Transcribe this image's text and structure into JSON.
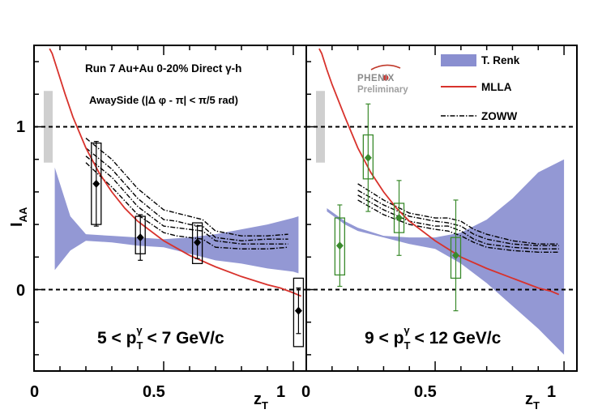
{
  "chart_data": [
    {
      "type": "scatter",
      "panel": "left",
      "title": "Run 7 Au+Au 0-20% Direct γ-h",
      "subtitle": "AwaySide (|Δ φ - π| < π/5 rad)",
      "kinematics": {
        "prefix": "5 < p",
        "sub": "T",
        "sup": "γ",
        "suffix": " < 7 GeV/c"
      },
      "ylabel": {
        "main": "I",
        "sub": "AA"
      },
      "xlabel": {
        "main": "z",
        "sub": "T"
      },
      "xlim": [
        0,
        1.05
      ],
      "ylim": [
        -0.5,
        1.5
      ],
      "x_ticks": [
        "0",
        "0.5",
        "1"
      ],
      "y_ticks": [
        "0",
        "1"
      ],
      "reference_lines": [
        0,
        1
      ],
      "global_uncertainty": {
        "low": 0.78,
        "high": 1.22
      },
      "data": {
        "name": "PHENIX",
        "color": "#000000",
        "points": [
          {
            "x": 0.24,
            "y": 0.65,
            "stat": 0.26,
            "sys_low": 0.4,
            "sys_high": 0.9
          },
          {
            "x": 0.41,
            "y": 0.32,
            "stat": 0.14,
            "sys_low": 0.22,
            "sys_high": 0.45
          },
          {
            "x": 0.63,
            "y": 0.29,
            "stat": 0.1,
            "sys_low": 0.16,
            "sys_high": 0.41
          },
          {
            "x": 1.02,
            "y": -0.13,
            "stat": 0.14,
            "sys_low": -0.35,
            "sys_high": 0.07
          }
        ]
      },
      "models": {
        "trenk": {
          "name": "T. Renk",
          "color": "#8a8fd0",
          "x": [
            0.08,
            0.14,
            0.2,
            0.3,
            0.4,
            0.5,
            0.6,
            0.7,
            0.8,
            0.9,
            1.0,
            1.02
          ],
          "low": [
            0.12,
            0.24,
            0.3,
            0.29,
            0.27,
            0.26,
            0.22,
            0.18,
            0.16,
            0.13,
            0.11,
            0.1
          ],
          "high": [
            0.75,
            0.45,
            0.34,
            0.33,
            0.32,
            0.31,
            0.32,
            0.34,
            0.37,
            0.4,
            0.44,
            0.45
          ]
        },
        "mlla": {
          "name": "MLLA",
          "color": "#d8322c",
          "x": [
            0.06,
            0.07,
            0.09,
            0.12,
            0.15,
            0.2,
            0.25,
            0.3,
            0.35,
            0.4,
            0.5,
            0.6,
            0.7,
            0.8,
            0.9,
            0.95,
            1.0,
            1.03
          ],
          "y": [
            1.48,
            1.45,
            1.35,
            1.2,
            1.06,
            0.87,
            0.72,
            0.6,
            0.5,
            0.42,
            0.3,
            0.21,
            0.14,
            0.08,
            0.03,
            0.01,
            -0.02,
            -0.04
          ]
        },
        "zoww": {
          "name": "ZOWW",
          "color": "#000000",
          "x": [
            0.2,
            0.3,
            0.4,
            0.5,
            0.55,
            0.6,
            0.65,
            0.7,
            0.8,
            0.9,
            0.98
          ],
          "curves": [
            [
              0.93,
              0.8,
              0.62,
              0.49,
              0.47,
              0.45,
              0.43,
              0.36,
              0.33,
              0.33,
              0.34
            ],
            [
              0.87,
              0.74,
              0.56,
              0.43,
              0.42,
              0.4,
              0.39,
              0.32,
              0.3,
              0.31,
              0.31
            ],
            [
              0.82,
              0.69,
              0.51,
              0.39,
              0.38,
              0.37,
              0.36,
              0.3,
              0.28,
              0.28,
              0.28
            ],
            [
              0.78,
              0.63,
              0.46,
              0.35,
              0.33,
              0.32,
              0.31,
              0.26,
              0.25,
              0.25,
              0.26
            ]
          ]
        }
      }
    },
    {
      "type": "scatter",
      "panel": "right",
      "brand": {
        "line1": "PHENIX",
        "line2": "Preliminary"
      },
      "kinematics": {
        "prefix": "9 < p",
        "sub": "T",
        "sup": "γ",
        "suffix": " < 12 GeV/c"
      },
      "xlabel": {
        "main": "z",
        "sub": "T"
      },
      "xlim": [
        0,
        1.05
      ],
      "ylim": [
        -0.5,
        1.5
      ],
      "x_ticks": [
        "0",
        "0.5",
        "1"
      ],
      "reference_lines": [
        0,
        1
      ],
      "global_uncertainty": {
        "low": 0.78,
        "high": 1.22
      },
      "legend": {
        "placement": "top-right",
        "entries": [
          "T. Renk",
          "MLLA",
          "ZOWW"
        ]
      },
      "data": {
        "name": "PHENIX",
        "color": "#3a8a2c",
        "points": [
          {
            "x": 0.13,
            "y": 0.27,
            "stat": 0.25,
            "sys_low": 0.09,
            "sys_high": 0.44
          },
          {
            "x": 0.24,
            "y": 0.81,
            "stat": 0.33,
            "sys_low": 0.68,
            "sys_high": 0.95
          },
          {
            "x": 0.36,
            "y": 0.44,
            "stat": 0.23,
            "sys_low": 0.35,
            "sys_high": 0.53
          },
          {
            "x": 0.58,
            "y": 0.21,
            "stat": 0.34,
            "sys_low": 0.07,
            "sys_high": 0.32
          }
        ]
      },
      "models": {
        "trenk": {
          "name": "T. Renk",
          "color": "#8a8fd0",
          "x": [
            0.08,
            0.15,
            0.2,
            0.3,
            0.4,
            0.5,
            0.6,
            0.7,
            0.8,
            0.9,
            1.0
          ],
          "low": [
            0.48,
            0.4,
            0.36,
            0.32,
            0.28,
            0.25,
            0.16,
            0.04,
            -0.1,
            -0.24,
            -0.4
          ],
          "high": [
            0.5,
            0.42,
            0.38,
            0.33,
            0.32,
            0.32,
            0.35,
            0.43,
            0.56,
            0.72,
            0.8
          ]
        },
        "mlla": {
          "name": "MLLA",
          "color": "#d8322c",
          "x": [
            0.05,
            0.06,
            0.08,
            0.1,
            0.15,
            0.2,
            0.25,
            0.3,
            0.35,
            0.4,
            0.5,
            0.6,
            0.7,
            0.8,
            0.9,
            0.95,
            0.98
          ],
          "y": [
            1.48,
            1.45,
            1.35,
            1.26,
            1.06,
            0.87,
            0.72,
            0.6,
            0.5,
            0.42,
            0.3,
            0.2,
            0.13,
            0.07,
            0.01,
            -0.01,
            -0.03
          ]
        },
        "zoww": {
          "name": "ZOWW",
          "color": "#000000",
          "x": [
            0.2,
            0.3,
            0.4,
            0.5,
            0.55,
            0.6,
            0.65,
            0.7,
            0.8,
            0.9,
            0.98
          ],
          "curves": [
            [
              0.65,
              0.55,
              0.47,
              0.44,
              0.44,
              0.42,
              0.37,
              0.34,
              0.3,
              0.28,
              0.28
            ],
            [
              0.61,
              0.52,
              0.45,
              0.42,
              0.41,
              0.39,
              0.34,
              0.31,
              0.28,
              0.27,
              0.27
            ],
            [
              0.58,
              0.49,
              0.42,
              0.39,
              0.39,
              0.36,
              0.31,
              0.28,
              0.26,
              0.25,
              0.25
            ],
            [
              0.55,
              0.46,
              0.4,
              0.37,
              0.36,
              0.33,
              0.29,
              0.26,
              0.24,
              0.23,
              0.23
            ]
          ]
        }
      }
    }
  ]
}
